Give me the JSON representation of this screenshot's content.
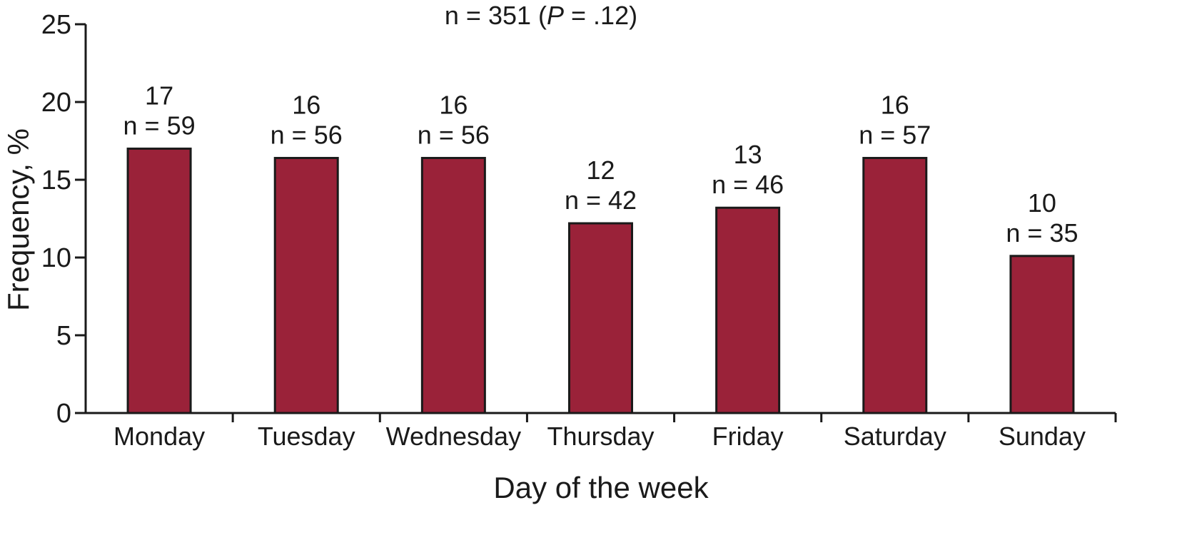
{
  "chart_data": {
    "type": "bar",
    "title_prefix": "n = 351 (",
    "title_italic": "P",
    "title_suffix": " = .12)",
    "categories": [
      "Monday",
      "Tuesday",
      "Wednesday",
      "Thursday",
      "Friday",
      "Saturday",
      "Sunday"
    ],
    "values": [
      17,
      16.4,
      16.4,
      12.2,
      13.2,
      16.4,
      10.1
    ],
    "value_labels": [
      "17",
      "16",
      "16",
      "12",
      "13",
      "16",
      "10"
    ],
    "n_labels": [
      "n = 59",
      "n = 56",
      "n = 56",
      "n = 42",
      "n = 46",
      "n = 57",
      "n = 35"
    ],
    "xlabel": "Day of the week",
    "ylabel": "Frequency, %",
    "ylim": [
      0,
      25
    ],
    "yticks": [
      "0",
      "5",
      "10",
      "15",
      "20",
      "25"
    ],
    "bar_color": "#9a2239",
    "grid": false,
    "legend": "none"
  }
}
